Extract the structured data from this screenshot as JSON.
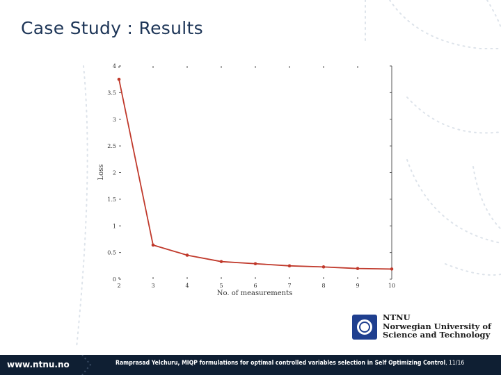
{
  "slide": {
    "title": "Case Study : Results"
  },
  "chart_data": {
    "type": "line",
    "xlabel": "No. of measurements",
    "ylabel": "Loss",
    "xlim": [
      2,
      10
    ],
    "ylim": [
      0,
      4
    ],
    "x_ticks": [
      2,
      3,
      4,
      5,
      6,
      7,
      8,
      9,
      10
    ],
    "y_ticks": [
      0,
      0.5,
      1,
      1.5,
      2,
      2.5,
      3,
      3.5,
      4
    ],
    "y_tick_labels": [
      "0",
      "0.5",
      "1",
      "1.5",
      "2",
      "2.5",
      "3",
      "3.5",
      "4"
    ],
    "series": [
      {
        "x": [
          2,
          3,
          4,
          5,
          6,
          7,
          8,
          9,
          10
        ],
        "values": [
          3.75,
          0.64,
          0.45,
          0.33,
          0.29,
          0.25,
          0.23,
          0.2,
          0.19
        ],
        "color": "#c0392b"
      }
    ],
    "grid": false
  },
  "logo": {
    "line1": "NTNU",
    "line2": "Norwegian University of",
    "line3": "Science and Technology"
  },
  "footer": {
    "url": "www.ntnu.no",
    "caption": "Ramprasad Yelchuru, MIQP formulations for optimal controlled variables selection in Self Optimizing Control",
    "page": ", 11/16"
  }
}
